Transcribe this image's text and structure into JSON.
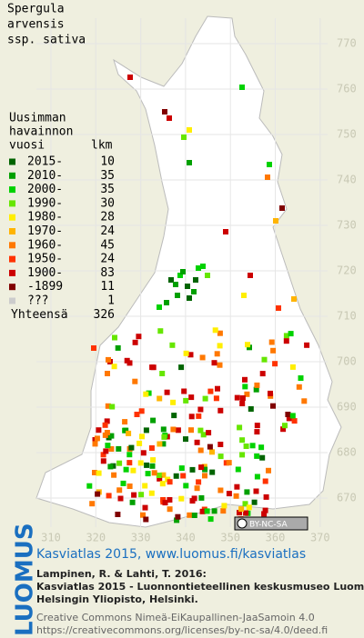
{
  "title_lines": [
    "Spergula",
    "arvensis",
    "ssp. sativa"
  ],
  "legend": {
    "heading": [
      "Uusimman",
      "havainnon"
    ],
    "col_year": "vuosi",
    "col_count": "lkm",
    "items": [
      {
        "label": "2015-",
        "count": 10,
        "color": "#006400"
      },
      {
        "label": "2010-",
        "count": 35,
        "color": "#00a000"
      },
      {
        "label": "2000-",
        "count": 35,
        "color": "#00d200"
      },
      {
        "label": "1990-",
        "count": 30,
        "color": "#66e600"
      },
      {
        "label": "1980-",
        "count": 28,
        "color": "#ffee00"
      },
      {
        "label": "1970-",
        "count": 24,
        "color": "#ffb400"
      },
      {
        "label": "1960-",
        "count": 45,
        "color": "#ff7800"
      },
      {
        "label": "1950-",
        "count": 24,
        "color": "#ff3200"
      },
      {
        "label": "1900-",
        "count": 83,
        "color": "#cc0000"
      },
      {
        "label": "-1899",
        "count": 11,
        "color": "#800000"
      },
      {
        "label": "???",
        "count": 1,
        "color": "#cccccc"
      }
    ],
    "total_label": "Yhteensä",
    "total": 326
  },
  "map": {
    "y_labels": [
      770,
      760,
      750,
      740,
      730,
      720,
      710,
      700,
      690,
      680,
      670
    ],
    "x_labels": [
      310,
      320,
      330,
      340,
      350,
      360,
      370
    ]
  },
  "license_badge": "BY-NC-SA",
  "logo": "LUOMUS",
  "footer": {
    "link": "Kasviatlas 2015, www.luomus.fi/kasviatlas",
    "citation": [
      "Lampinen, R. & Lahti, T. 2016:",
      "Kasviatlas 2015 - Luonnontieteellinen keskusmuseo Luomus,",
      "Helsingin Yliopisto, Helsinki."
    ],
    "license": [
      "Creative Commons Nimeä-EiKaupallinen-JaaSamoin 4.0",
      "https://creativecommons.org/licenses/by-nc-sa/4.0/deed.fi"
    ]
  }
}
